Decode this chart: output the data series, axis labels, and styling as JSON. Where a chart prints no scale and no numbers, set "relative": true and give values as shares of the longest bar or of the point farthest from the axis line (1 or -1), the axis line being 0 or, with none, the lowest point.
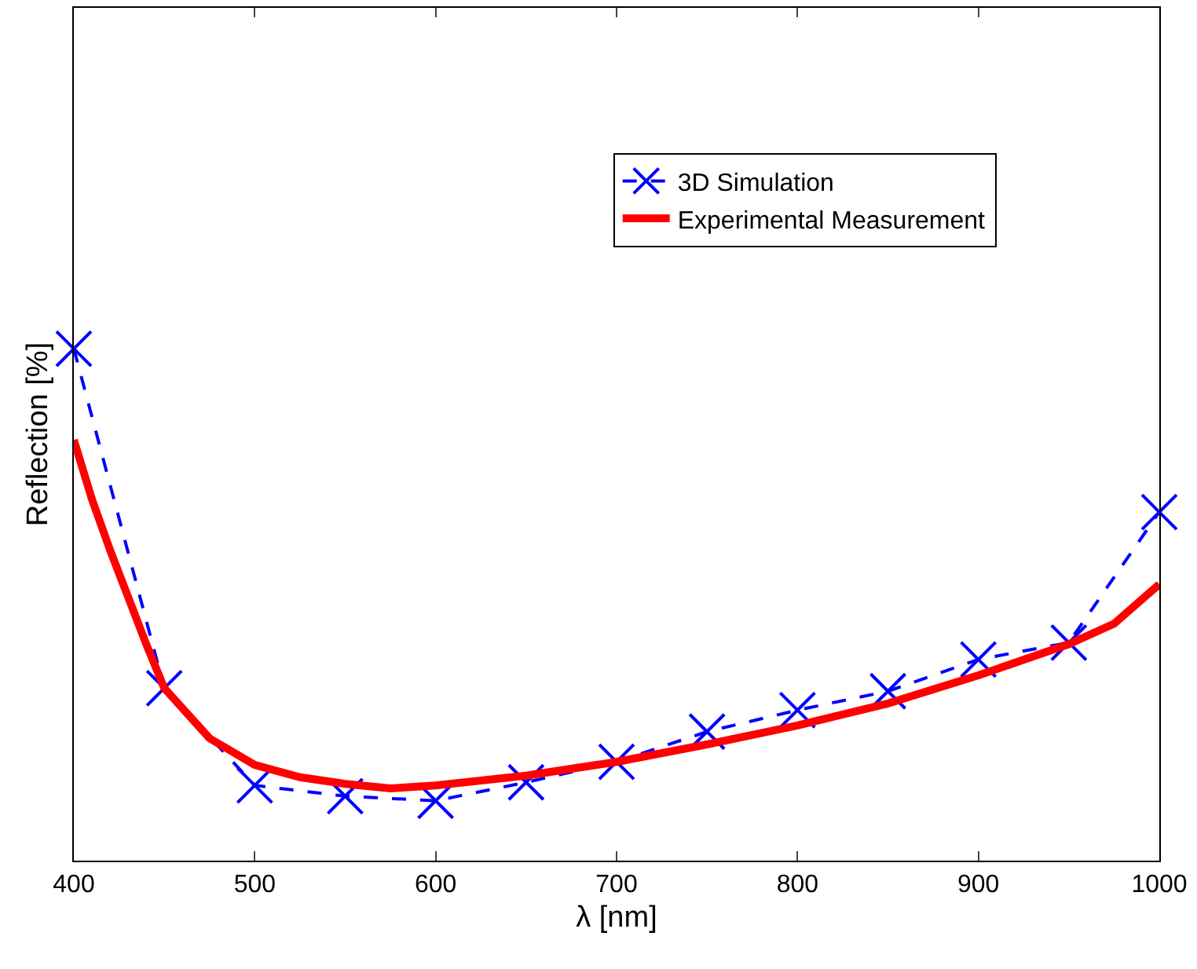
{
  "chart_data": {
    "type": "line",
    "xlabel": "λ [nm]",
    "ylabel": "Reflection [%]",
    "relative": true,
    "xlim": [
      400,
      1000
    ],
    "xticks": [
      400,
      500,
      600,
      700,
      800,
      900,
      1000
    ],
    "legend": "top right",
    "series": [
      {
        "name": "3D Simulation",
        "color": "#0000ff",
        "marker": "cross",
        "line_style": "dashed",
        "x": [
          400,
          450,
          500,
          550,
          600,
          650,
          700,
          750,
          800,
          850,
          900,
          950,
          1000
        ],
        "values": [
          1,
          0.337,
          0.147,
          0.126,
          0.117,
          0.153,
          0.193,
          0.252,
          0.294,
          0.331,
          0.393,
          0.426,
          0.681
        ]
      },
      {
        "name": "Experimental Measurement",
        "color": "#ff0000",
        "marker": "none",
        "line_style": "solid",
        "x": [
          400,
          410,
          420,
          430,
          440,
          450,
          475,
          500,
          525,
          550,
          575,
          600,
          650,
          700,
          750,
          800,
          850,
          900,
          950,
          975,
          1000
        ],
        "values": [
          0.822,
          0.706,
          0.607,
          0.515,
          0.423,
          0.337,
          0.239,
          0.187,
          0.163,
          0.15,
          0.141,
          0.147,
          0.166,
          0.193,
          0.227,
          0.264,
          0.307,
          0.362,
          0.423,
          0.463,
          0.54
        ]
      }
    ]
  }
}
